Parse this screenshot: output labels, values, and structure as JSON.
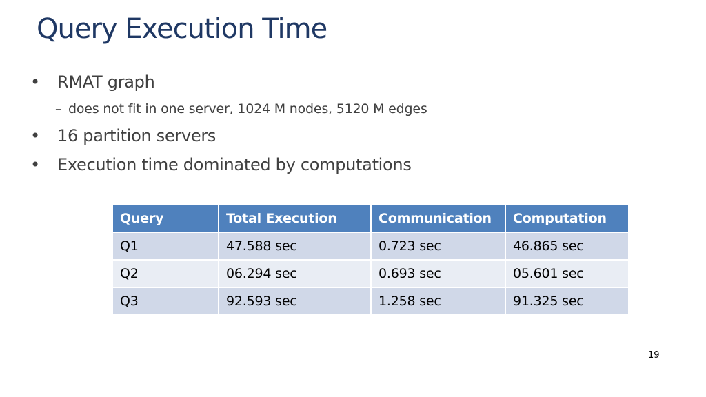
{
  "slide": {
    "title": "Query Execution Time",
    "bullets": [
      {
        "text": "RMAT graph"
      },
      {
        "text": "16 partition servers"
      },
      {
        "text": "Execution time dominated by computations"
      }
    ],
    "sub_bullet": {
      "text": "does not fit in one server, 1024 M nodes, 5120 M edges"
    },
    "bullet_marker": "•",
    "sub_marker": "–",
    "page_number": "19"
  },
  "table": {
    "headers": [
      "Query",
      "Total Execution",
      "Communication",
      "Computation"
    ],
    "rows": [
      [
        "Q1",
        "47.588 sec",
        "0.723 sec",
        "46.865 sec"
      ],
      [
        "Q2",
        "06.294 sec",
        "0.693 sec",
        "05.601 sec"
      ],
      [
        "Q3",
        "92.593 sec",
        "1.258 sec",
        "91.325 sec"
      ]
    ],
    "colors": {
      "header_bg": "#4f81bd",
      "row_odd_bg": "#d0d8e8",
      "row_even_bg": "#e9edf4"
    }
  }
}
